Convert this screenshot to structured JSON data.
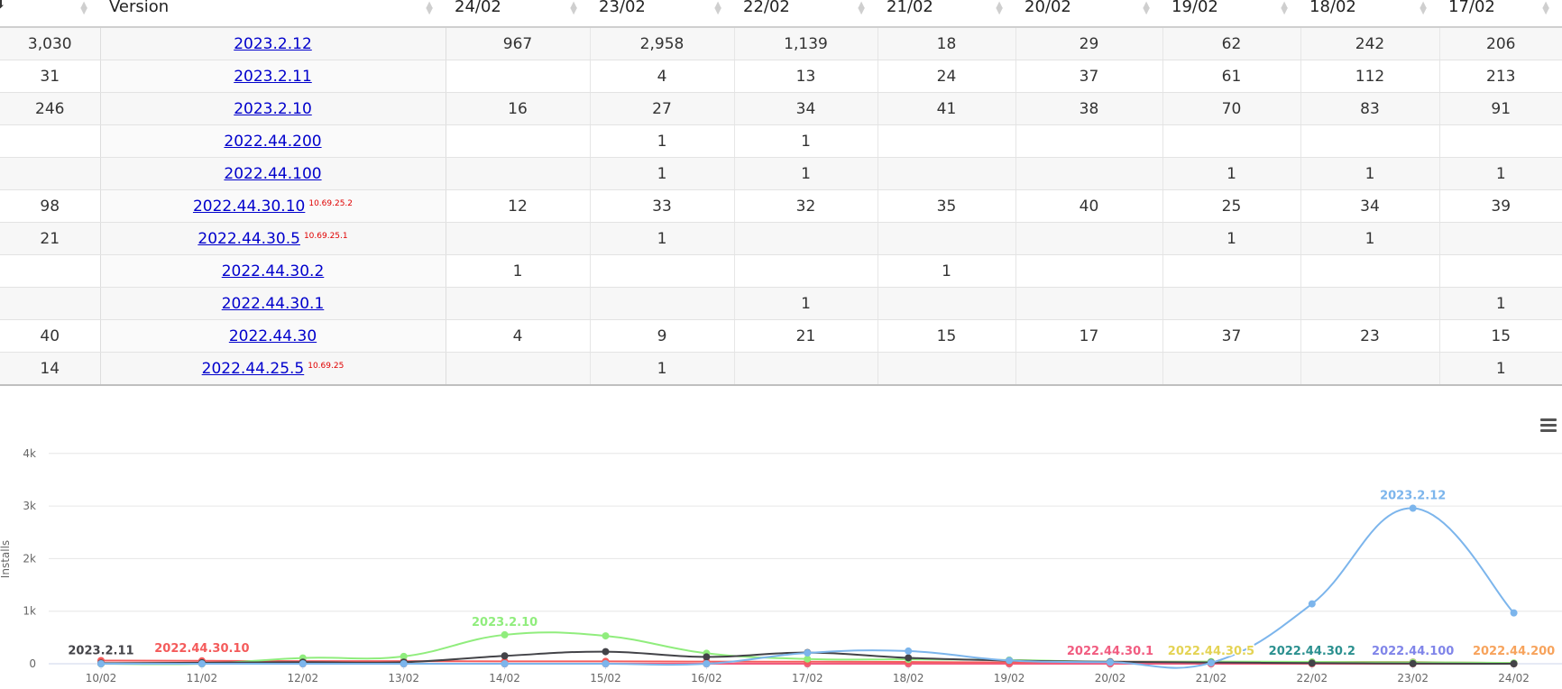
{
  "table": {
    "columns": [
      "",
      "Version",
      "24/02",
      "23/02",
      "22/02",
      "21/02",
      "20/02",
      "19/02",
      "18/02",
      "17/02"
    ],
    "rows": [
      {
        "total": "3,030",
        "version": "2023.2.12",
        "tag": "",
        "cells": [
          "967",
          "2,958",
          "1,139",
          "18",
          "29",
          "62",
          "242",
          "206"
        ]
      },
      {
        "total": "31",
        "version": "2023.2.11",
        "tag": "",
        "cells": [
          "",
          "4",
          "13",
          "24",
          "37",
          "61",
          "112",
          "213"
        ]
      },
      {
        "total": "246",
        "version": "2023.2.10",
        "tag": "",
        "cells": [
          "16",
          "27",
          "34",
          "41",
          "38",
          "70",
          "83",
          "91"
        ]
      },
      {
        "total": "",
        "version": "2022.44.200",
        "tag": "",
        "cells": [
          "",
          "1",
          "1",
          "",
          "",
          "",
          "",
          ""
        ]
      },
      {
        "total": "",
        "version": "2022.44.100",
        "tag": "",
        "cells": [
          "",
          "1",
          "1",
          "",
          "",
          "1",
          "1",
          "1"
        ]
      },
      {
        "total": "98",
        "version": "2022.44.30.10",
        "tag": "10.69.25.2",
        "cells": [
          "12",
          "33",
          "32",
          "35",
          "40",
          "25",
          "34",
          "39"
        ]
      },
      {
        "total": "21",
        "version": "2022.44.30.5",
        "tag": "10.69.25.1",
        "cells": [
          "",
          "1",
          "",
          "",
          "",
          "1",
          "1",
          ""
        ]
      },
      {
        "total": "",
        "version": "2022.44.30.2",
        "tag": "",
        "cells": [
          "1",
          "",
          "",
          "1",
          "",
          "",
          "",
          ""
        ]
      },
      {
        "total": "",
        "version": "2022.44.30.1",
        "tag": "",
        "cells": [
          "",
          "",
          "1",
          "",
          "",
          "",
          "",
          "1"
        ]
      },
      {
        "total": "40",
        "version": "2022.44.30",
        "tag": "",
        "cells": [
          "4",
          "9",
          "21",
          "15",
          "17",
          "37",
          "23",
          "15"
        ]
      },
      {
        "total": "14",
        "version": "2022.44.25.5",
        "tag": "10.69.25",
        "cells": [
          "",
          "1",
          "",
          "",
          "",
          "",
          "",
          "1"
        ]
      }
    ]
  },
  "chart_data": {
    "type": "line",
    "ylabel": "Installs",
    "ylim": [
      0,
      4000
    ],
    "y_ticks": [
      "0",
      "1k",
      "2k",
      "3k",
      "4k"
    ],
    "categories": [
      "10/02",
      "11/02",
      "12/02",
      "13/02",
      "14/02",
      "15/02",
      "16/02",
      "17/02",
      "18/02",
      "19/02",
      "20/02",
      "21/02",
      "22/02",
      "23/02",
      "24/02"
    ],
    "series": [
      {
        "name": "2023.2.12",
        "color": "#7cb5ec",
        "values": [
          0,
          0,
          0,
          0,
          0,
          0,
          0,
          206,
          242,
          62,
          29,
          18,
          1139,
          2958,
          967
        ]
      },
      {
        "name": "2023.2.11",
        "color": "#434348",
        "values": [
          10,
          20,
          30,
          30,
          150,
          230,
          130,
          213,
          112,
          61,
          37,
          24,
          13,
          4,
          0
        ]
      },
      {
        "name": "2023.2.10",
        "color": "#90ed7d",
        "values": [
          0,
          0,
          110,
          140,
          550,
          530,
          200,
          91,
          83,
          70,
          38,
          41,
          34,
          27,
          16
        ]
      },
      {
        "name": "2022.44.30.10",
        "color": "#f45b5b",
        "values": [
          60,
          55,
          50,
          50,
          45,
          45,
          40,
          39,
          34,
          25,
          40,
          35,
          32,
          33,
          12
        ]
      },
      {
        "name": "2022.44.30.1",
        "color": "#f15c80",
        "values": [
          0,
          0,
          0,
          0,
          0,
          0,
          0,
          1,
          0,
          0,
          0,
          0,
          1,
          0,
          0
        ]
      },
      {
        "name": "2022.44.30.5",
        "color": "#e4d354",
        "values": [
          0,
          0,
          0,
          0,
          0,
          0,
          0,
          0,
          1,
          1,
          0,
          0,
          0,
          1,
          0
        ]
      },
      {
        "name": "2022.44.30.2",
        "color": "#2b908f",
        "values": [
          0,
          0,
          0,
          0,
          0,
          0,
          0,
          0,
          0,
          0,
          0,
          1,
          0,
          0,
          1
        ]
      },
      {
        "name": "2022.44.100",
        "color": "#8085e9",
        "values": [
          0,
          0,
          0,
          0,
          0,
          0,
          0,
          1,
          1,
          1,
          0,
          0,
          1,
          1,
          0
        ]
      },
      {
        "name": "2022.44.200",
        "color": "#f7a35c",
        "values": [
          0,
          0,
          0,
          0,
          0,
          0,
          0,
          0,
          0,
          0,
          0,
          0,
          1,
          1,
          0
        ]
      }
    ],
    "labels": [
      {
        "series": "2023.2.11",
        "at": "10/02"
      },
      {
        "series": "2022.44.30.10",
        "at": "11/02"
      },
      {
        "series": "2023.2.10",
        "at": "14/02"
      },
      {
        "series": "2022.44.30.1",
        "at": "20/02"
      },
      {
        "series": "2022.44.30.5",
        "at": "21/02"
      },
      {
        "series": "2022.44.30.2",
        "at": "22/02"
      },
      {
        "series": "2022.44.100",
        "at": "23/02"
      },
      {
        "series": "2022.44.200",
        "at": "24/02"
      },
      {
        "series": "2023.2.12",
        "at": "23/02"
      }
    ],
    "grid": true
  }
}
